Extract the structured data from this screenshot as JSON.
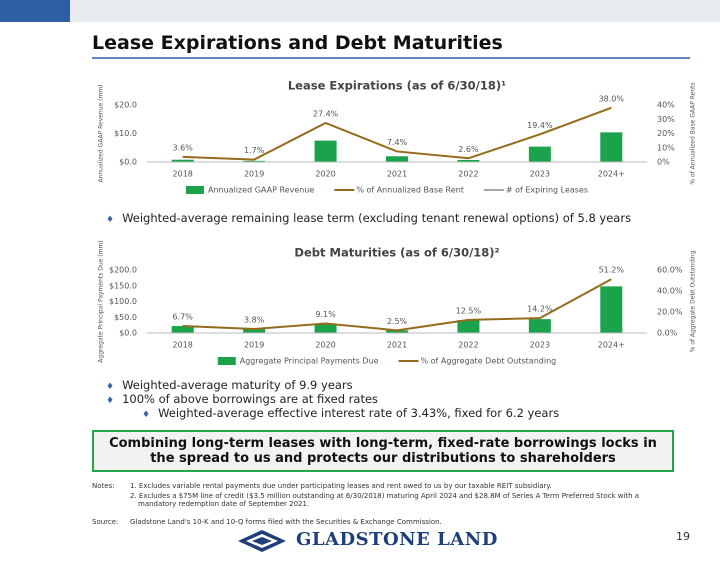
{
  "title": "Lease Expirations and Debt Maturities",
  "chart_data": [
    {
      "type": "combo",
      "title": "Lease Expirations (as of 6/30/18)¹",
      "categories": [
        "2018",
        "2019",
        "2020",
        "2021",
        "2022",
        "2023",
        "2024+"
      ],
      "y_label": "Annualized GAAP Revenue (mm)",
      "y2_label": "% of Annualized Base GAAP Rents",
      "ylim": [
        0,
        20
      ],
      "yticks": [
        {
          "value": 0,
          "label": "$0.0"
        },
        {
          "value": 10,
          "label": "$10.0"
        },
        {
          "value": 20,
          "label": "$20.0"
        }
      ],
      "y2lim": [
        0,
        40
      ],
      "y2ticks": [
        {
          "value": 0,
          "label": "0%"
        },
        {
          "value": 10,
          "label": "10%"
        },
        {
          "value": 20,
          "label": "20%"
        },
        {
          "value": 30,
          "label": "30%"
        },
        {
          "value": 40,
          "label": "40%"
        }
      ],
      "series": [
        {
          "name": "Annualized GAAP Revenue",
          "color": "#1aa34a",
          "kind": "bar",
          "values": [
            0.8,
            0.4,
            7.5,
            2.0,
            0.7,
            5.4,
            10.4
          ]
        },
        {
          "name": "% of Annualized Base Rent",
          "color": "#946b1c",
          "kind": "line",
          "axis": "y2",
          "values": [
            3.6,
            1.7,
            27.4,
            7.4,
            2.6,
            19.4,
            38.0
          ],
          "value_labels": [
            "3.6%",
            "1.7%",
            "27.4%",
            "7.4%",
            "2.6%",
            "19.4%",
            "38.0%"
          ]
        },
        {
          "name": "# of Expiring Leases",
          "color": "#a6a6a6",
          "kind": "line",
          "values": [
            null,
            null,
            null,
            null,
            null,
            null,
            null
          ]
        }
      ],
      "grid": false,
      "legend": "bottom"
    },
    {
      "type": "combo",
      "title": "Debt Maturities (as of 6/30/18)²",
      "categories": [
        "2018",
        "2019",
        "2020",
        "2021",
        "2022",
        "2023",
        "2024+"
      ],
      "y_label": "Aggregate Principal Payments Due (mm)",
      "y2_label": "% of Aggregate Debt Outstanding",
      "ylim": [
        0,
        200
      ],
      "yticks": [
        {
          "value": 0,
          "label": "$0.0"
        },
        {
          "value": 50,
          "label": "$50.0"
        },
        {
          "value": 100,
          "label": "$100.0"
        },
        {
          "value": 150,
          "label": "$150.0"
        },
        {
          "value": 200,
          "label": "$200.0"
        }
      ],
      "y2lim": [
        0,
        60
      ],
      "y2ticks": [
        {
          "value": 0,
          "label": "0.0%"
        },
        {
          "value": 20,
          "label": "20.0%"
        },
        {
          "value": 40,
          "label": "40.0%"
        },
        {
          "value": 60,
          "label": "60.0%"
        }
      ],
      "series": [
        {
          "name": "Aggregate Principal Payments Due",
          "color": "#1aa34a",
          "kind": "bar",
          "values": [
            22,
            13,
            30,
            8,
            41,
            44,
            148
          ]
        },
        {
          "name": "% of Aggregate Debt Outstanding",
          "color": "#946b1c",
          "kind": "line",
          "axis": "y2",
          "values": [
            6.7,
            3.8,
            9.1,
            2.5,
            12.5,
            14.2,
            51.2
          ],
          "value_labels": [
            "6.7%",
            "3.8%",
            "9.1%",
            "2.5%",
            "12.5%",
            "14.2%",
            "51.2%"
          ]
        }
      ],
      "grid": false,
      "legend": "bottom"
    }
  ],
  "bullets_1": [
    "Weighted-average remaining lease term (excluding tenant renewal options) of 5.8 years"
  ],
  "bullets_2": [
    "Weighted-average maturity of 9.9 years",
    "100% of above borrowings are at fixed rates"
  ],
  "sub_bullets_2": [
    "Weighted-average effective interest rate of 3.43%, fixed for 6.2 years"
  ],
  "callout": "Combining long-term leases with long-term, fixed-rate borrowings locks in the spread to us and protects our distributions to shareholders",
  "notes_label": "Notes:",
  "notes": [
    "1. Excludes variable rental payments due under participating leases and rent owed to us by our taxable REIT subsidiary.",
    "2. Excludes a $75M line of credit ($3.5 million outstanding at 6/30/2018) maturing April 2024 and $28.8M of Series A Term Preferred Stock with a mandatory redemption date of September 2021."
  ],
  "source_label": "Source:",
  "source": "Gladstone Land's 10-K and 10-Q forms filed with the Securities & Exchange Commission.",
  "logo": "GLADSTONE LAND",
  "page_number": 19
}
